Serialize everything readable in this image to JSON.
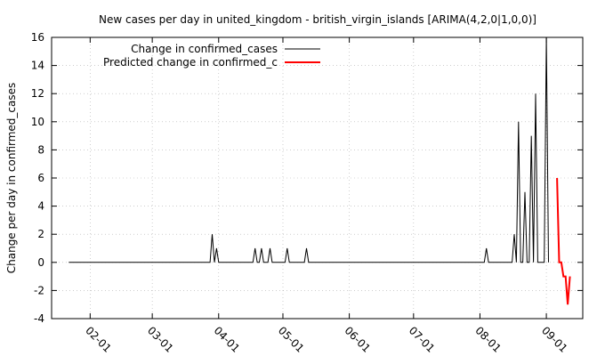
{
  "chart_data": {
    "type": "line",
    "title": "New cases per day in united_kingdom - british_virgin_islands [ARIMA(4,2,0|1,0,0)]",
    "xlabel": "",
    "ylabel": "Change per day in confirmed_cases",
    "ylim": [
      -4,
      16
    ],
    "yticks": [
      -4,
      -2,
      0,
      2,
      4,
      6,
      8,
      10,
      12,
      14,
      16
    ],
    "xlim": [
      "2020-01-14",
      "2020-09-18"
    ],
    "xticks": [
      "2020-02-01",
      "2020-03-01",
      "2020-04-01",
      "2020-05-01",
      "2020-06-01",
      "2020-07-01",
      "2020-08-01",
      "2020-09-01"
    ],
    "xtick_labels": [
      "02-01",
      "03-01",
      "04-01",
      "05-01",
      "06-01",
      "07-01",
      "08-01",
      "09-01"
    ],
    "grid": true,
    "legend_position": "top-left",
    "series": [
      {
        "name": "Change in confirmed_cases",
        "color": "#000000",
        "points": [
          [
            "2020-01-22",
            0
          ],
          [
            "2020-03-28",
            0
          ],
          [
            "2020-03-29",
            2
          ],
          [
            "2020-03-30",
            0
          ],
          [
            "2020-03-31",
            1
          ],
          [
            "2020-04-01",
            0
          ],
          [
            "2020-04-17",
            0
          ],
          [
            "2020-04-18",
            1
          ],
          [
            "2020-04-19",
            0
          ],
          [
            "2020-04-20",
            0
          ],
          [
            "2020-04-21",
            1
          ],
          [
            "2020-04-22",
            0
          ],
          [
            "2020-04-24",
            0
          ],
          [
            "2020-04-25",
            1
          ],
          [
            "2020-04-26",
            0
          ],
          [
            "2020-05-02",
            0
          ],
          [
            "2020-05-03",
            1
          ],
          [
            "2020-05-04",
            0
          ],
          [
            "2020-05-11",
            0
          ],
          [
            "2020-05-12",
            1
          ],
          [
            "2020-05-13",
            0
          ],
          [
            "2020-08-03",
            0
          ],
          [
            "2020-08-04",
            1
          ],
          [
            "2020-08-05",
            0
          ],
          [
            "2020-08-16",
            0
          ],
          [
            "2020-08-17",
            2
          ],
          [
            "2020-08-18",
            0
          ],
          [
            "2020-08-19",
            10
          ],
          [
            "2020-08-20",
            0
          ],
          [
            "2020-08-21",
            0
          ],
          [
            "2020-08-22",
            5
          ],
          [
            "2020-08-23",
            0
          ],
          [
            "2020-08-24",
            0
          ],
          [
            "2020-08-25",
            9
          ],
          [
            "2020-08-26",
            0
          ],
          [
            "2020-08-27",
            12
          ],
          [
            "2020-08-28",
            0
          ],
          [
            "2020-08-29",
            0
          ],
          [
            "2020-08-30",
            0
          ],
          [
            "2020-08-31",
            0
          ],
          [
            "2020-09-01",
            16
          ],
          [
            "2020-09-02",
            0
          ]
        ]
      },
      {
        "name": "Predicted change in confirmed_c",
        "color": "#ff0000",
        "points": [
          [
            "2020-09-06",
            6
          ],
          [
            "2020-09-07",
            0
          ],
          [
            "2020-09-08",
            0
          ],
          [
            "2020-09-09",
            -1
          ],
          [
            "2020-09-10",
            -1
          ],
          [
            "2020-09-11",
            -3
          ],
          [
            "2020-09-12",
            -1
          ]
        ]
      }
    ]
  }
}
